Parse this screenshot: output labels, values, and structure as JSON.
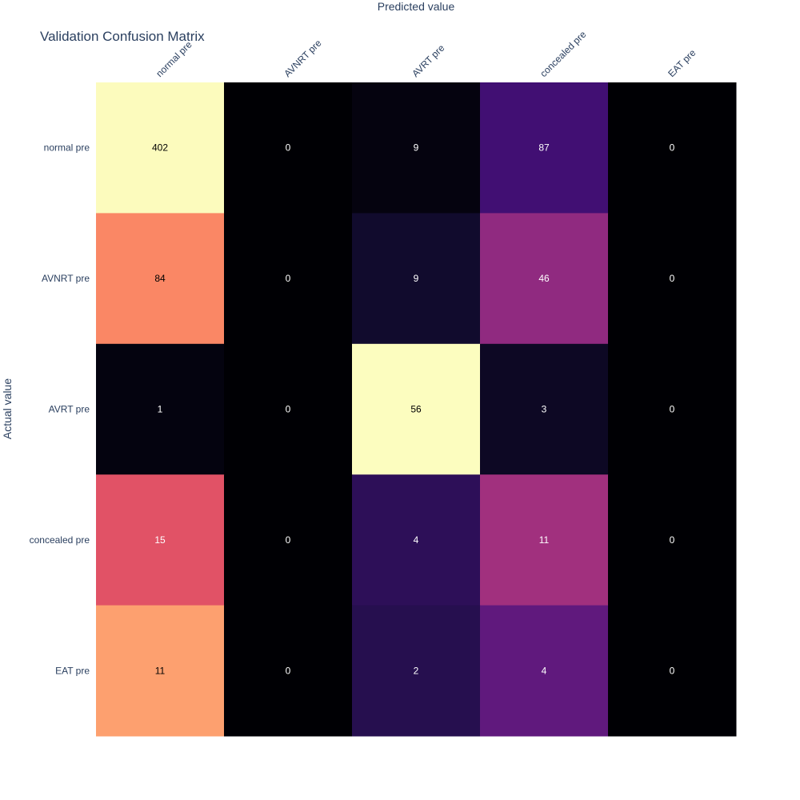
{
  "chart_data": {
    "type": "heatmap",
    "title": "Validation Confusion Matrix",
    "xlabel": "Predicted value",
    "ylabel": "Actual value",
    "x_categories": [
      "normal pre",
      "AVNRT pre",
      "AVRT pre",
      "concealed pre",
      "EAT pre"
    ],
    "y_categories": [
      "normal pre",
      "AVNRT pre",
      "AVRT pre",
      "concealed pre",
      "EAT pre"
    ],
    "x_axis_position": "top",
    "normalization": "row",
    "colorscale": "magma",
    "show_colorbar": false,
    "values": [
      [
        402,
        0,
        9,
        87,
        0
      ],
      [
        84,
        0,
        9,
        46,
        0
      ],
      [
        1,
        0,
        56,
        3,
        0
      ],
      [
        15,
        0,
        4,
        11,
        0
      ],
      [
        11,
        0,
        2,
        4,
        0
      ]
    ]
  }
}
